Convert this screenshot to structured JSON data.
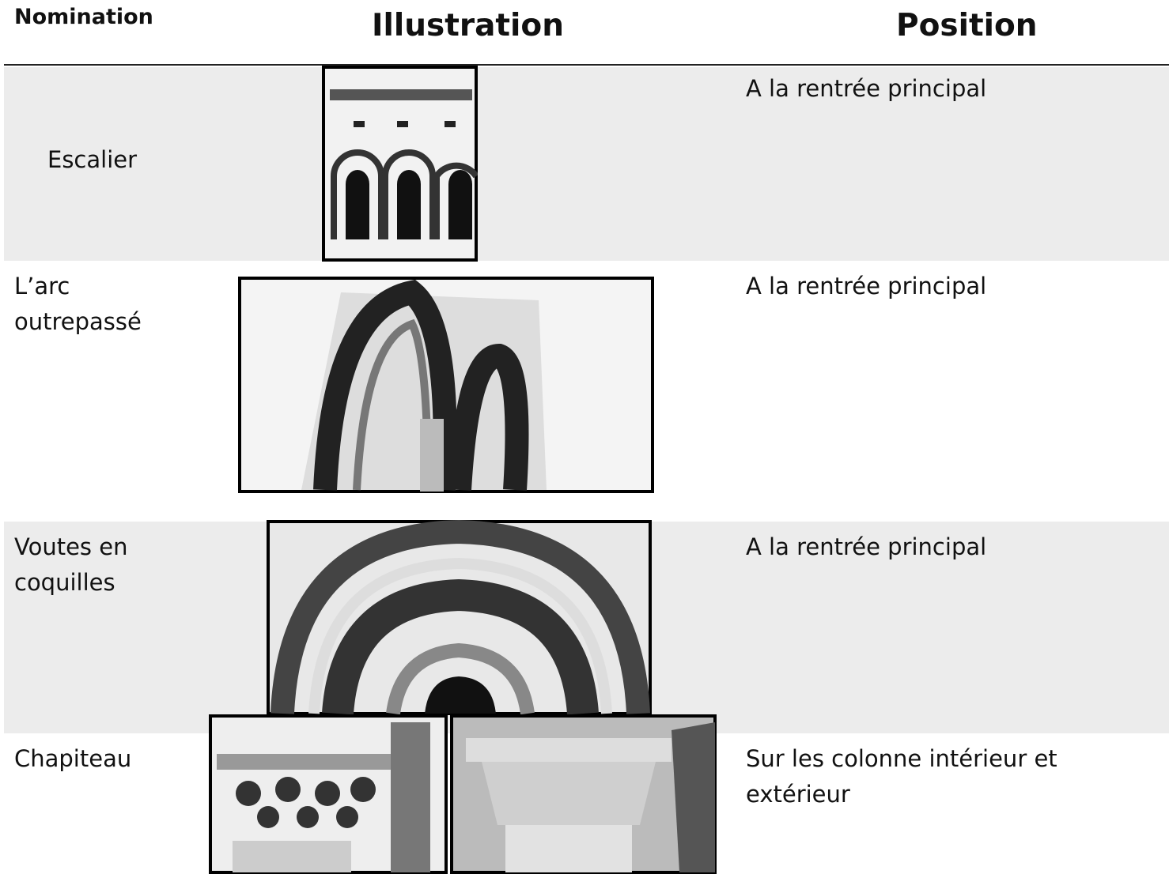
{
  "table": {
    "headers": [
      "Nomination",
      "Illustration",
      "Position"
    ],
    "rows": [
      {
        "name": "Escalier",
        "position": "A la rentrée principal"
      },
      {
        "name": "L’arc outrepassé",
        "position": "A la rentrée principal"
      },
      {
        "name": "Voutes en coquilles",
        "position": "A la rentrée principal"
      },
      {
        "name": "Chapiteau",
        "position": "Sur les colonne intérieur et extérieur"
      }
    ]
  }
}
